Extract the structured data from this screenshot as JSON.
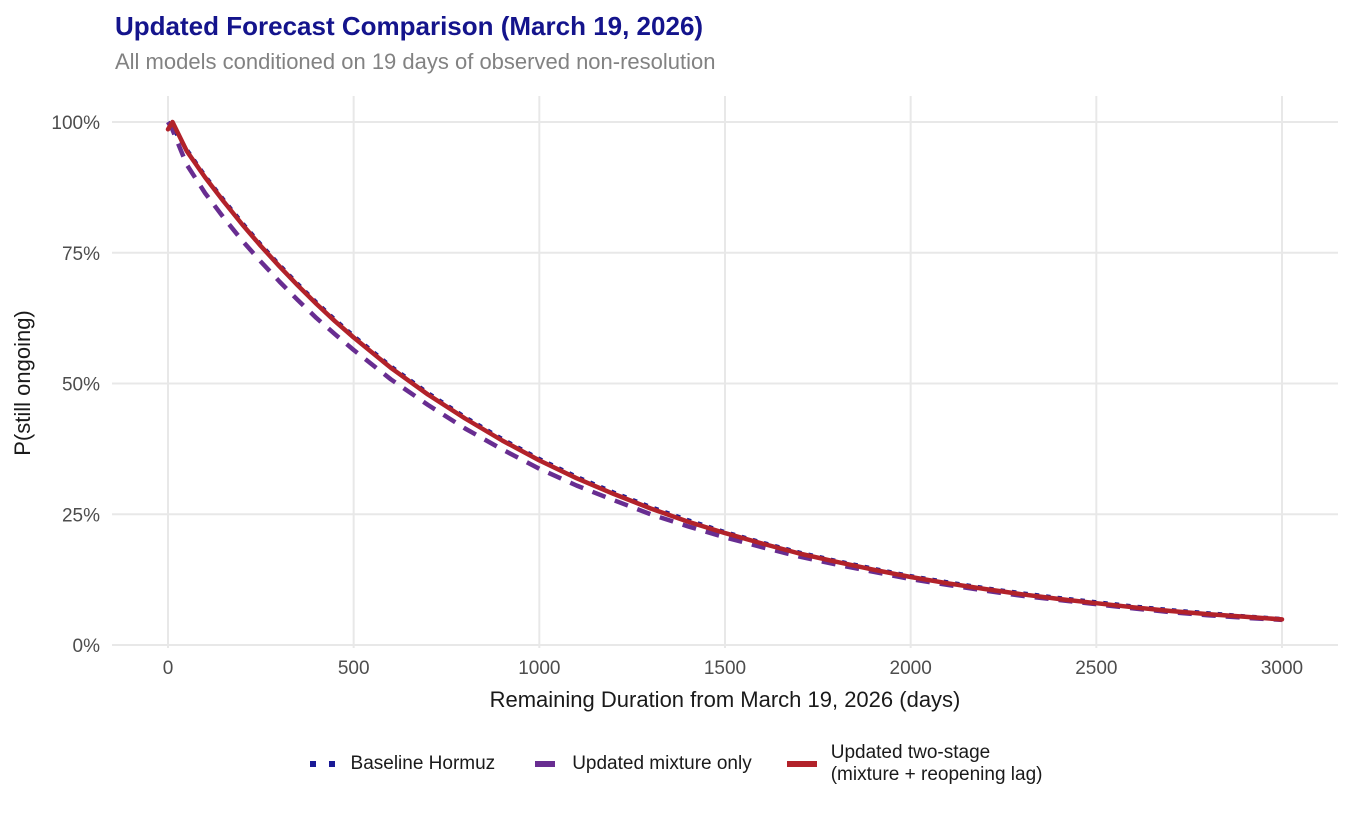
{
  "header": {
    "title": "Updated Forecast Comparison (March 19, 2026)",
    "subtitle": "All models conditioned on 19 days of observed non-resolution"
  },
  "colors": {
    "title": "#14148c",
    "subtitle": "#828282",
    "grid": "#e8e8e8",
    "tick_label": "#4d4d4d",
    "axis_title": "#1a1a1a",
    "baseline_navy": "#1a1a96",
    "mixture_purple": "#682d91",
    "two_stage_red": "#b2222a"
  },
  "chart_data": {
    "type": "line",
    "title": "Updated Forecast Comparison (March 19, 2026)",
    "subtitle": "All models conditioned on 19 days of observed non-resolution",
    "xlabel": "Remaining Duration from March 19, 2026 (days)",
    "ylabel": "P(still ongoing)",
    "xlim": [
      0,
      3000
    ],
    "ylim": [
      0,
      100
    ],
    "grid": true,
    "legend_position": "bottom",
    "x_ticks": {
      "values": [
        0,
        500,
        1000,
        1500,
        2000,
        2500,
        3000
      ],
      "labels": [
        "0",
        "500",
        "1000",
        "1500",
        "2000",
        "2500",
        "3000"
      ]
    },
    "y_ticks": {
      "values": [
        0,
        25,
        50,
        75,
        100
      ],
      "labels": [
        "0%",
        "25%",
        "50%",
        "75%",
        "100%"
      ]
    },
    "x": [
      0,
      12,
      50,
      100,
      150,
      200,
      250,
      300,
      350,
      400,
      450,
      500,
      600,
      700,
      800,
      900,
      1000,
      1100,
      1200,
      1300,
      1400,
      1500,
      1600,
      1700,
      1800,
      1900,
      2000,
      2100,
      2200,
      2300,
      2400,
      2500,
      2600,
      2700,
      2800,
      2900,
      3000
    ],
    "series": [
      {
        "name": "Baseline Hormuz",
        "color": "#1a1a96",
        "dash": "dotted",
        "values": [
          100,
          98.9,
          94.8,
          89.7,
          85.1,
          80.7,
          76.6,
          72.7,
          69.0,
          65.5,
          62.2,
          59.1,
          53.3,
          48.2,
          43.6,
          39.4,
          35.6,
          32.2,
          29.2,
          26.4,
          23.9,
          21.6,
          19.6,
          17.7,
          16.1,
          14.6,
          13.2,
          12.0,
          10.9,
          9.9,
          9.0,
          8.2,
          7.4,
          6.7,
          6.1,
          5.5,
          5.0
        ]
      },
      {
        "name": "Updated mixture only",
        "color": "#682d91",
        "dash": "dashed",
        "values": [
          100,
          98.5,
          91.9,
          86.4,
          81.7,
          77.3,
          73.3,
          69.5,
          65.9,
          62.5,
          59.4,
          56.4,
          50.8,
          45.9,
          41.4,
          37.4,
          33.7,
          30.5,
          27.7,
          25.0,
          22.7,
          20.6,
          18.7,
          16.9,
          15.4,
          14.0,
          12.6,
          11.5,
          10.4,
          9.4,
          8.6,
          7.8,
          7.0,
          6.3,
          5.7,
          5.2,
          4.8
        ]
      },
      {
        "name": "Updated two-stage (mixture + reopening lag)",
        "color": "#b2222a",
        "dash": "solid",
        "values": [
          98.6,
          100,
          94.5,
          89.4,
          84.8,
          80.4,
          76.3,
          72.4,
          68.7,
          65.2,
          61.9,
          58.8,
          53.0,
          47.9,
          43.3,
          39.1,
          35.3,
          31.9,
          28.9,
          26.1,
          23.6,
          21.4,
          19.4,
          17.5,
          15.9,
          14.4,
          13.0,
          11.8,
          10.7,
          9.7,
          8.8,
          8.0,
          7.2,
          6.5,
          5.9,
          5.4,
          4.9
        ]
      }
    ]
  },
  "legend": {
    "items": [
      {
        "label": "Baseline Hormuz"
      },
      {
        "label": "Updated mixture only"
      },
      {
        "label": "Updated two-stage",
        "label2": "(mixture + reopening lag)"
      }
    ]
  }
}
